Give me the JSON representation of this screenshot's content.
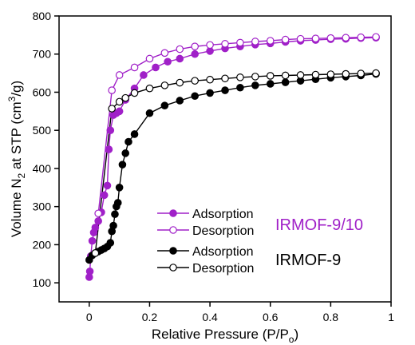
{
  "chart_data": {
    "type": "scatter",
    "xlabel": "Relative Pressure (P/P",
    "xlabel_sub": "o",
    "xlabel_end": ")",
    "ylabel_pre": "Volume N",
    "ylabel_sub": "2",
    "ylabel_mid": " at STP (cm",
    "ylabel_sup": "3",
    "ylabel_end": "/g)",
    "xlim": [
      -0.1,
      1.0
    ],
    "ylim": [
      50,
      800
    ],
    "x_ticks": [
      0,
      0.2,
      0.4,
      0.6,
      0.8,
      1
    ],
    "x_tick_labels": [
      "0",
      "0.2",
      "0.4",
      "0.6",
      "0.8",
      "1"
    ],
    "y_ticks": [
      100,
      200,
      300,
      400,
      500,
      600,
      700,
      800
    ],
    "y_tick_labels": [
      "100",
      "200",
      "300",
      "400",
      "500",
      "600",
      "700",
      "800"
    ],
    "legend_placement": "center",
    "groups": [
      {
        "label": "IRMOF-9/10",
        "color": "#a020c8"
      },
      {
        "label": "IRMOF-9",
        "color": "#000000"
      }
    ],
    "series": [
      {
        "name": "Adsorption",
        "group": "IRMOF-9/10",
        "color": "#a020c8",
        "filled": true,
        "x": [
          0.0,
          0.002,
          0.005,
          0.01,
          0.015,
          0.02,
          0.03,
          0.04,
          0.05,
          0.06,
          0.065,
          0.07,
          0.08,
          0.09,
          0.1,
          0.12,
          0.15,
          0.18,
          0.22,
          0.26,
          0.3,
          0.35,
          0.4,
          0.45,
          0.5,
          0.55,
          0.6,
          0.65,
          0.7,
          0.75,
          0.8,
          0.85,
          0.9,
          0.95
        ],
        "y": [
          115,
          130,
          170,
          210,
          232,
          245,
          262,
          285,
          330,
          355,
          450,
          500,
          540,
          545,
          550,
          580,
          610,
          645,
          665,
          680,
          688,
          700,
          708,
          715,
          720,
          725,
          728,
          732,
          735,
          737,
          739,
          740,
          742,
          743
        ]
      },
      {
        "name": "Desorption",
        "group": "IRMOF-9/10",
        "color": "#a020c8",
        "filled": false,
        "x": [
          0.95,
          0.9,
          0.85,
          0.8,
          0.75,
          0.7,
          0.65,
          0.6,
          0.55,
          0.5,
          0.45,
          0.4,
          0.35,
          0.3,
          0.25,
          0.2,
          0.15,
          0.1,
          0.075,
          0.03
        ],
        "y": [
          745,
          744,
          743,
          742,
          741,
          740,
          738,
          735,
          733,
          730,
          727,
          724,
          720,
          713,
          703,
          688,
          665,
          645,
          605,
          282
        ]
      },
      {
        "name": "Adsorption",
        "group": "IRMOF-9",
        "color": "#000000",
        "filled": true,
        "x": [
          0.0,
          0.01,
          0.02,
          0.03,
          0.04,
          0.05,
          0.06,
          0.07,
          0.075,
          0.08,
          0.085,
          0.09,
          0.095,
          0.1,
          0.11,
          0.12,
          0.13,
          0.15,
          0.2,
          0.25,
          0.3,
          0.35,
          0.4,
          0.45,
          0.5,
          0.55,
          0.6,
          0.65,
          0.7,
          0.75,
          0.8,
          0.85,
          0.9,
          0.95
        ],
        "y": [
          160,
          172,
          178,
          182,
          186,
          190,
          195,
          205,
          235,
          250,
          280,
          300,
          310,
          350,
          410,
          440,
          470,
          490,
          545,
          565,
          578,
          590,
          598,
          605,
          612,
          618,
          622,
          626,
          630,
          634,
          638,
          641,
          644,
          648
        ]
      },
      {
        "name": "Desorption",
        "group": "IRMOF-9",
        "color": "#000000",
        "filled": false,
        "x": [
          0.95,
          0.9,
          0.85,
          0.8,
          0.75,
          0.7,
          0.65,
          0.6,
          0.55,
          0.5,
          0.45,
          0.4,
          0.35,
          0.3,
          0.25,
          0.2,
          0.15,
          0.12,
          0.1,
          0.075,
          0.02
        ],
        "y": [
          650,
          649,
          648,
          647,
          646,
          645,
          644,
          643,
          641,
          639,
          636,
          633,
          630,
          625,
          618,
          610,
          598,
          585,
          575,
          557,
          178
        ]
      }
    ]
  }
}
